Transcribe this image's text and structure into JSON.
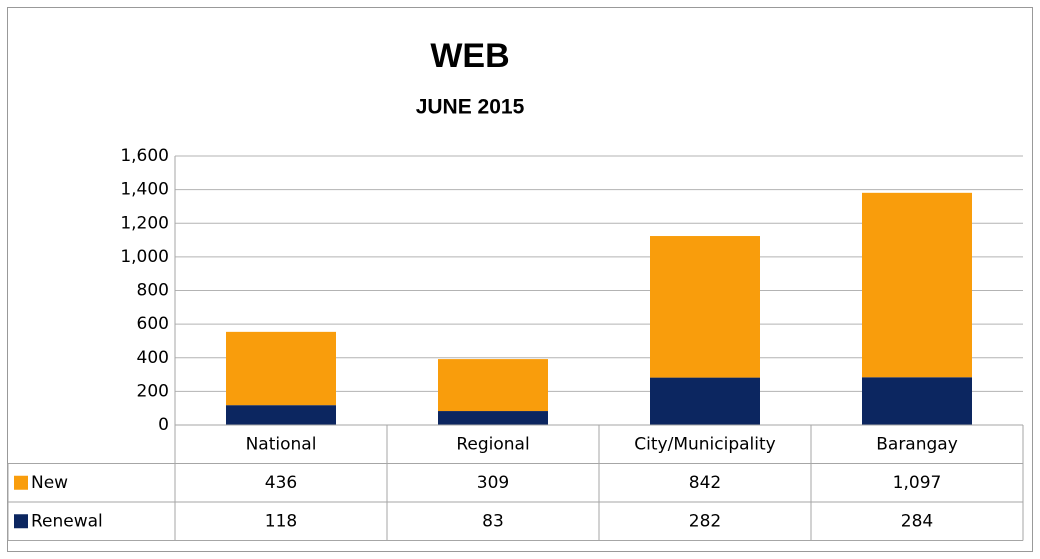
{
  "chart_data": {
    "type": "stacked_bar",
    "title": "WEB",
    "subtitle": "JUNE 2015",
    "categories": [
      "National",
      "Regional",
      "City/Municipality",
      "Barangay"
    ],
    "series": [
      {
        "name": "New",
        "color": "#f99d0c",
        "values": [
          436,
          309,
          842,
          1097
        ],
        "value_labels": [
          "436",
          "309",
          "842",
          "1,097"
        ]
      },
      {
        "name": "Renewal",
        "color": "#0c2660",
        "values": [
          118,
          83,
          282,
          284
        ]
      }
    ],
    "ylim": [
      0,
      1600
    ],
    "yticks": [
      0,
      200,
      400,
      600,
      800,
      {
        "value": 1000,
        "label": "1,000"
      },
      {
        "value": 1200,
        "label": "1,200"
      },
      {
        "value": 1400,
        "label": "1,400"
      },
      {
        "value": 1600,
        "label": "1,600"
      }
    ],
    "grid": true,
    "data_table": true
  }
}
